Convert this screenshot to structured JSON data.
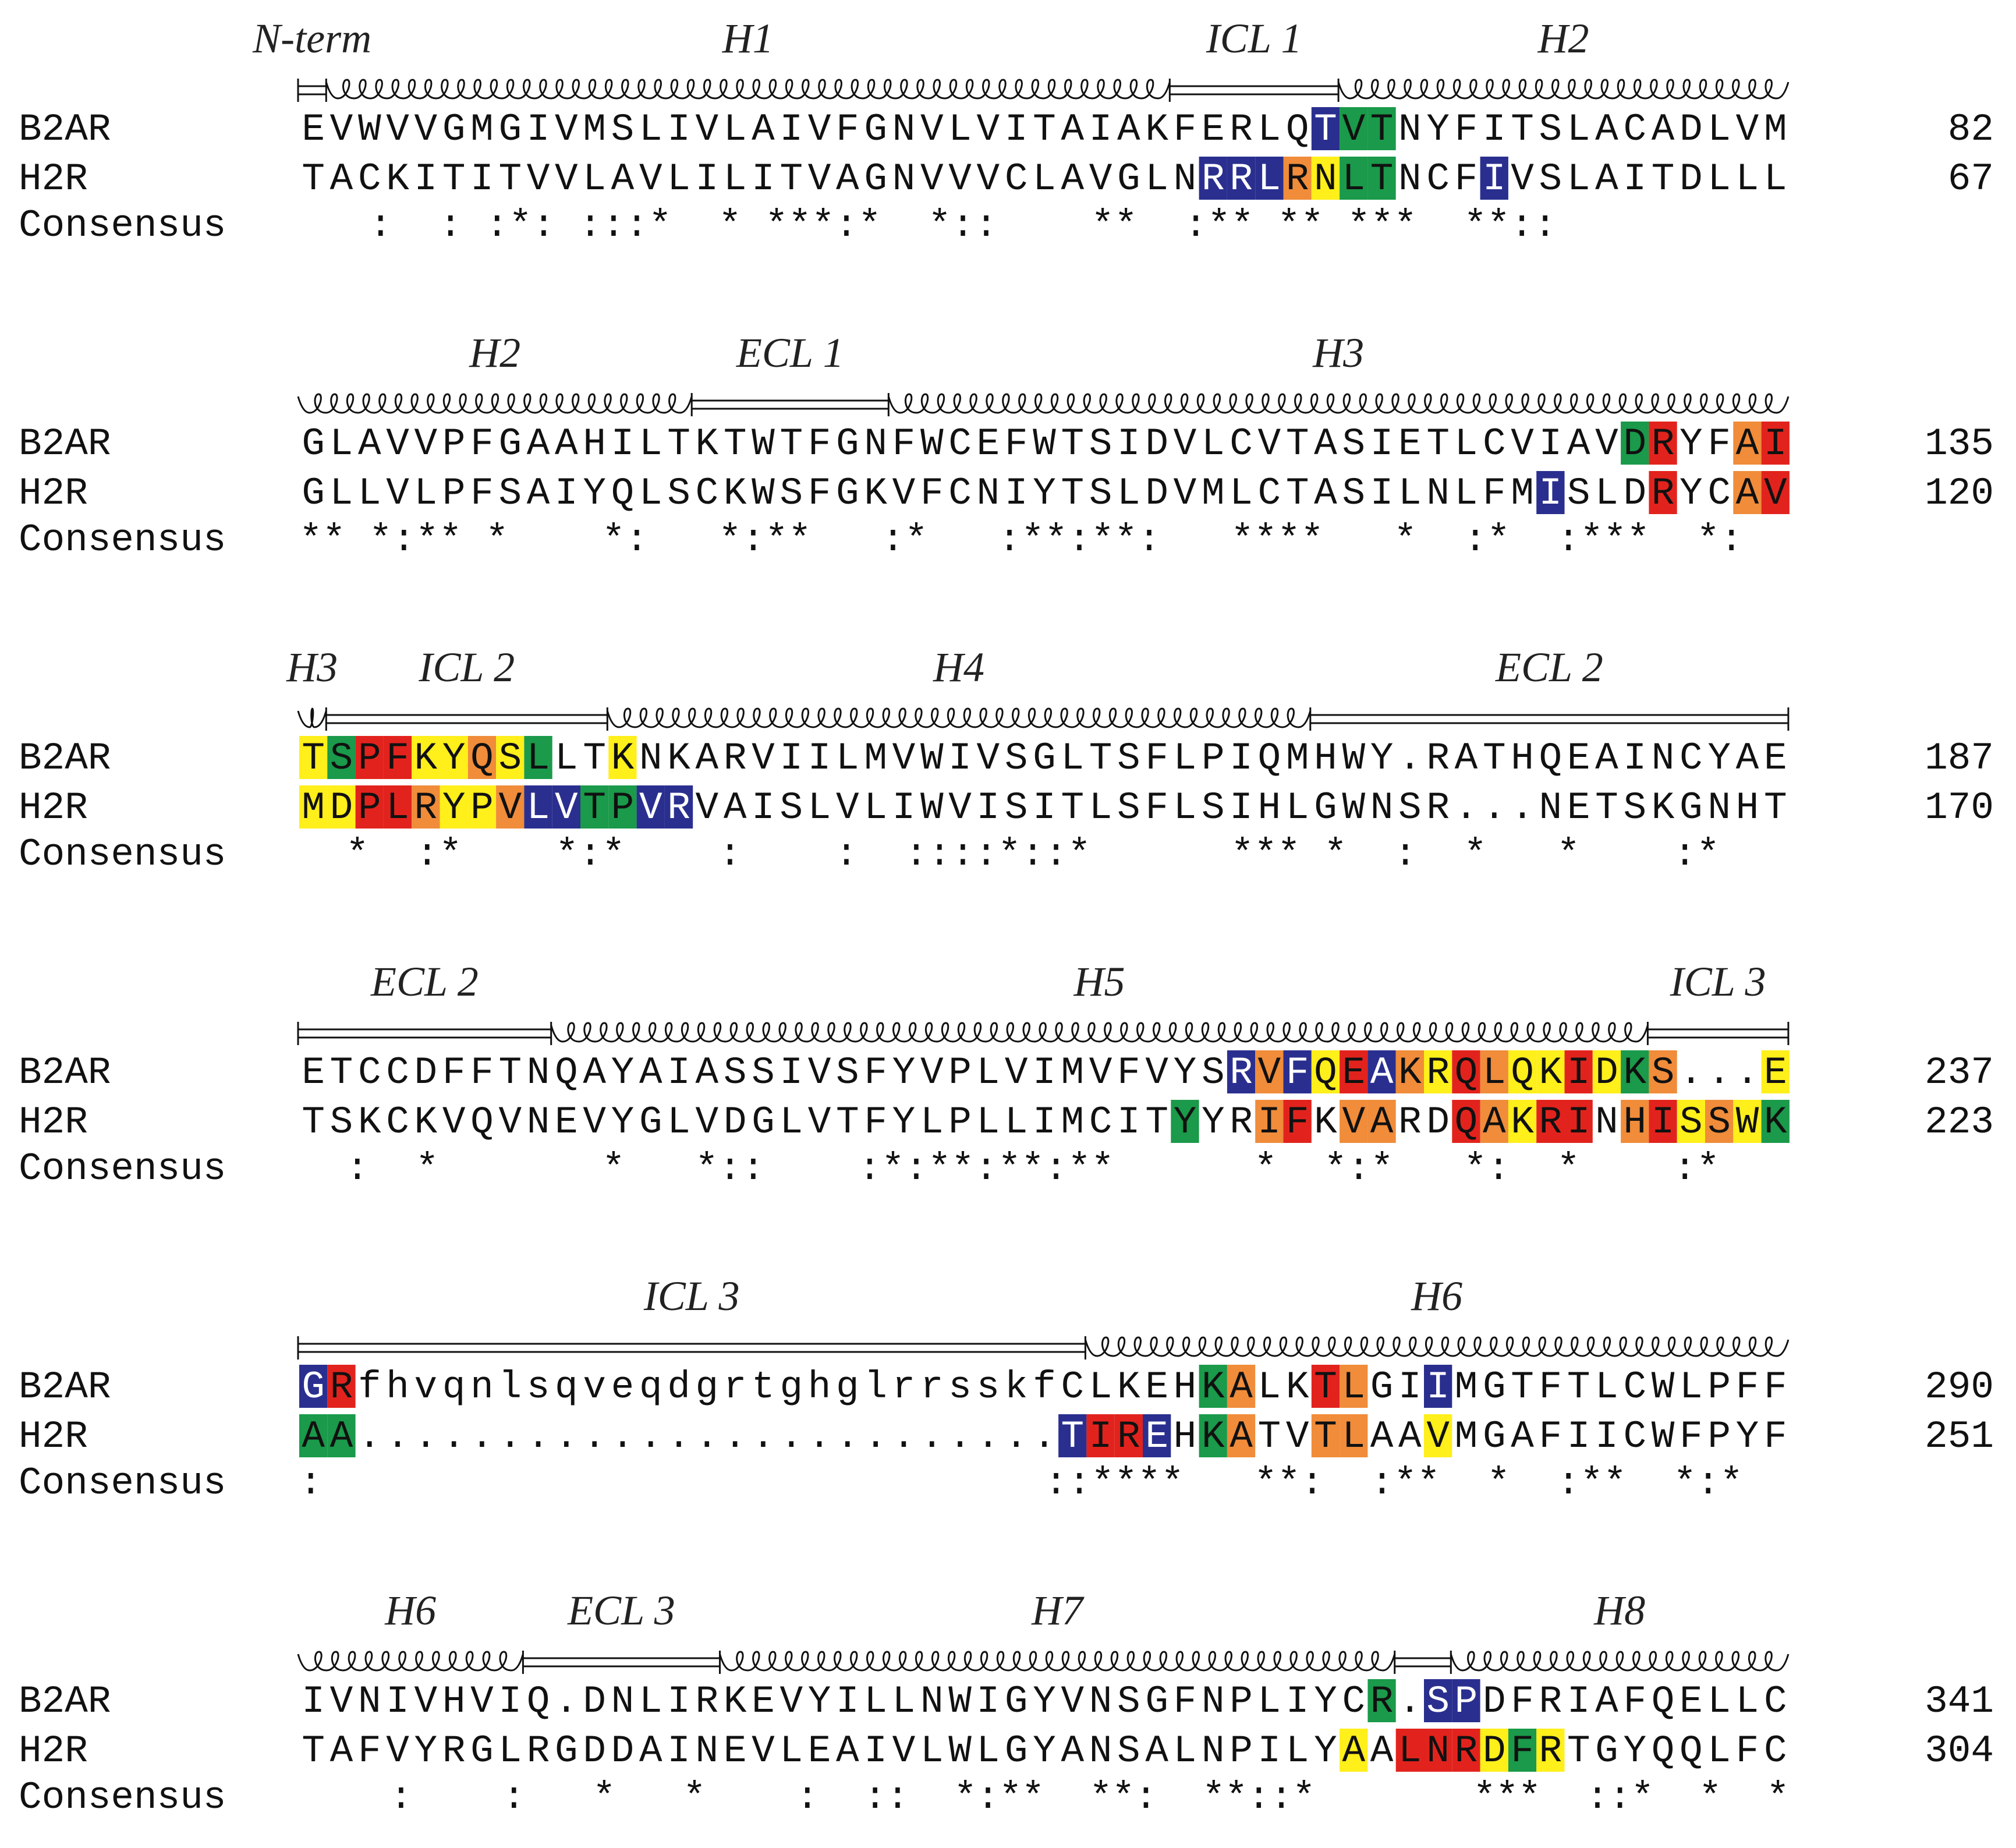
{
  "labels": {
    "seq1": "B2AR",
    "seq2": "H2R",
    "consensus": "Consensus"
  },
  "colors": {
    "blue": "#2a2f8f",
    "green": "#1a9a4a",
    "yellow": "#ffef1a",
    "orange": "#f08c3a",
    "red": "#e2231d"
  },
  "blocks": [
    {
      "regions": [
        {
          "label": "N-term",
          "type": "loop",
          "start": 0,
          "end": 1
        },
        {
          "label": "H1",
          "type": "helix",
          "start": 1,
          "end": 31
        },
        {
          "label": "ICL 1",
          "type": "loop",
          "start": 31,
          "end": 37
        },
        {
          "label": "H2",
          "type": "helix",
          "start": 37,
          "end": 53
        }
      ],
      "rows": [
        {
          "seq": "EVWVVGMGIVMSLIVLAIVFGNVLVITAIAKFERLQTVTNYFITSLACADLVM",
          "end": "82"
        },
        {
          "seq": "TACKITITVVLAVLILITVAGNVVVCLAVGLNRRLRNLTNCFIVSLAITDLLL",
          "end": "67"
        }
      ],
      "consensus": "   :  : :*: :::*  * ***:*  *::    **  :** ** ***  **::",
      "highlights": [
        {
          "row": 0,
          "start": 36,
          "colors": [
            "blue",
            "green",
            "green"
          ]
        },
        {
          "row": 1,
          "start": 32,
          "colors": [
            "blue",
            "blue",
            "blue",
            "orange",
            "yellow",
            "green",
            "green"
          ]
        },
        {
          "row": 1,
          "start": 42,
          "colors": [
            "blue"
          ]
        }
      ]
    },
    {
      "regions": [
        {
          "label": "H2",
          "type": "helix",
          "start": 0,
          "end": 14
        },
        {
          "label": "ECL 1",
          "type": "loop",
          "start": 14,
          "end": 21
        },
        {
          "label": "H3",
          "type": "helix",
          "start": 21,
          "end": 53
        }
      ],
      "rows": [
        {
          "seq": "GLAVVPFGAAHILTKTWTFGNFWCEFWTSIDVLCVTASIETLCVIAVDRYFAI",
          "end": "135"
        },
        {
          "seq": "GLLVLPFSAIYQLSCKWSFGKVFCNIYTSLDVMLCTASILNLFMISLDRYCAV",
          "end": "120"
        }
      ],
      "consensus": "** *:** *    *:   *:**   :*   :**:**:   ****   *  :*  :***  *:",
      "highlights": [
        {
          "row": 0,
          "start": 47,
          "colors": [
            "green",
            "red"
          ]
        },
        {
          "row": 0,
          "start": 51,
          "colors": [
            "orange",
            "red"
          ]
        },
        {
          "row": 1,
          "start": 44,
          "colors": [
            "blue"
          ]
        },
        {
          "row": 1,
          "start": 48,
          "colors": [
            "red"
          ]
        },
        {
          "row": 1,
          "start": 51,
          "colors": [
            "orange",
            "red"
          ]
        }
      ]
    },
    {
      "regions": [
        {
          "label": "H3",
          "type": "helix",
          "start": 0,
          "end": 1
        },
        {
          "label": "ICL 2",
          "type": "loop",
          "start": 1,
          "end": 11
        },
        {
          "label": "H4",
          "type": "helix",
          "start": 11,
          "end": 36
        },
        {
          "label": "ECL 2",
          "type": "loop",
          "start": 36,
          "end": 53
        }
      ],
      "rows": [
        {
          "seq": "TSPFKYQSLLTKNKARVIILMVWIVSGLTSFLPIQMHWY.RATHQEAINCYAE",
          "end": "187"
        },
        {
          "seq": "MDPLRYPVLVTPVRVAISLVLIWVISITLSFLSIHLGWNSR...NETSKGNHT",
          "end": "170"
        }
      ],
      "consensus": "  *  :*    *:*    :    :  ::::*::*      *** *  :  *   *    :*",
      "highlights": [
        {
          "row": 0,
          "start": 0,
          "colors": [
            "yellow",
            "green",
            "red",
            "red",
            "yellow",
            "yellow",
            "orange",
            "yellow",
            "green"
          ]
        },
        {
          "row": 0,
          "start": 11,
          "colors": [
            "yellow"
          ]
        },
        {
          "row": 1,
          "start": 0,
          "colors": [
            "yellow",
            "yellow",
            "red",
            "red",
            "orange",
            "yellow",
            "yellow",
            "orange",
            "blue",
            "blue",
            "green",
            "green",
            "blue",
            "blue"
          ]
        }
      ]
    },
    {
      "regions": [
        {
          "label": "ECL 2",
          "type": "loop",
          "start": 0,
          "end": 9
        },
        {
          "label": "H5",
          "type": "helix",
          "start": 9,
          "end": 48
        },
        {
          "label": "ICL 3",
          "type": "loop",
          "start": 48,
          "end": 53
        }
      ],
      "rows": [
        {
          "seq": "ETCCDFFTNQAYAIASSIVSFYVPLVIMVFVYSRVFQEAKRQLQKIDKS...E",
          "end": "237"
        },
        {
          "seq": "TSKCKVQVNEVYGLVDGLVTFYLPLLIMCITYYRIFKVARDQAKRINHISSWK",
          "end": "223"
        }
      ],
      "consensus": "  :  *       *   *::    :*:**:**:**      *  *:*   *:  *    :*",
      "highlights": [
        {
          "row": 0,
          "start": 33,
          "colors": [
            "blue",
            "orange",
            "blue",
            "yellow",
            "red",
            "blue",
            "orange",
            "yellow",
            "red",
            "orange",
            "yellow",
            "yellow",
            "red",
            "yellow",
            "green",
            "orange"
          ]
        },
        {
          "row": 0,
          "start": 52,
          "colors": [
            "yellow"
          ]
        },
        {
          "row": 1,
          "start": 31,
          "colors": [
            "green"
          ]
        },
        {
          "row": 1,
          "start": 34,
          "colors": [
            "orange",
            "red"
          ]
        },
        {
          "row": 1,
          "start": 37,
          "colors": [
            "orange",
            "orange"
          ]
        },
        {
          "row": 1,
          "start": 41,
          "colors": [
            "red",
            "orange",
            "yellow",
            "red",
            "red"
          ]
        },
        {
          "row": 1,
          "start": 47,
          "colors": [
            "orange",
            "red",
            "yellow",
            "orange",
            "yellow",
            "green"
          ]
        }
      ]
    },
    {
      "regions": [
        {
          "label": "ICL 3",
          "type": "loop",
          "start": 0,
          "end": 28
        },
        {
          "label": "H6",
          "type": "helix",
          "start": 28,
          "end": 53
        }
      ],
      "rows": [
        {
          "seq": "GRfhvqnlsqveqdgrtghglrrsskfCLKEHKALKTLGIIMGTFTLCWLPFF",
          "end": "290"
        },
        {
          "seq": "AA.........................TIREHKATVTLAAVMGAFIICWFPYF",
          "end": "251"
        }
      ],
      "consensus": ":                               ::****   **:  :**  *  :**  *:*",
      "highlights": [
        {
          "row": 0,
          "start": 0,
          "colors": [
            "blue",
            "red"
          ]
        },
        {
          "row": 0,
          "start": 32,
          "colors": [
            "green",
            "orange"
          ]
        },
        {
          "row": 0,
          "start": 36,
          "colors": [
            "red",
            "orange"
          ]
        },
        {
          "row": 0,
          "start": 40,
          "colors": [
            "blue"
          ]
        },
        {
          "row": 1,
          "start": 0,
          "colors": [
            "green",
            "green"
          ]
        },
        {
          "row": 1,
          "start": 27,
          "colors": [
            "blue",
            "red",
            "red",
            "blue"
          ]
        },
        {
          "row": 1,
          "start": 32,
          "colors": [
            "green",
            "orange"
          ]
        },
        {
          "row": 1,
          "start": 36,
          "colors": [
            "orange",
            "orange"
          ]
        },
        {
          "row": 1,
          "start": 40,
          "colors": [
            "yellow"
          ]
        }
      ]
    },
    {
      "regions": [
        {
          "label": "H6",
          "type": "helix",
          "start": 0,
          "end": 8
        },
        {
          "label": "ECL 3",
          "type": "loop",
          "start": 8,
          "end": 15
        },
        {
          "label": "H7",
          "type": "helix",
          "start": 15,
          "end": 39
        },
        {
          "label": "",
          "type": "loop",
          "start": 39,
          "end": 41
        },
        {
          "label": "H8",
          "type": "helix",
          "start": 41,
          "end": 53
        }
      ],
      "rows": [
        {
          "seq": "IVNIVHVIQ.DNLIRKEVYILLNWIGYVNSGFNPLIYCR.SPDFRIAFQELLC",
          "end": "341"
        },
        {
          "seq": "TAFVYRGLRGDDAINEVLEAIVLWLGYANSALNPILYAALNRDFRTGYQQLFC",
          "end": "304"
        }
      ],
      "consensus": "    :    :   *   *    :  ::  *:**  **:  **::*       ***  ::*  *  *",
      "highlights": [
        {
          "row": 0,
          "start": 38,
          "colors": [
            "green"
          ]
        },
        {
          "row": 0,
          "start": 40,
          "colors": [
            "blue",
            "blue"
          ]
        },
        {
          "row": 1,
          "start": 37,
          "colors": [
            "yellow"
          ]
        },
        {
          "row": 1,
          "start": 39,
          "colors": [
            "red",
            "red",
            "red",
            "yellow",
            "green",
            "yellow"
          ]
        }
      ]
    }
  ]
}
